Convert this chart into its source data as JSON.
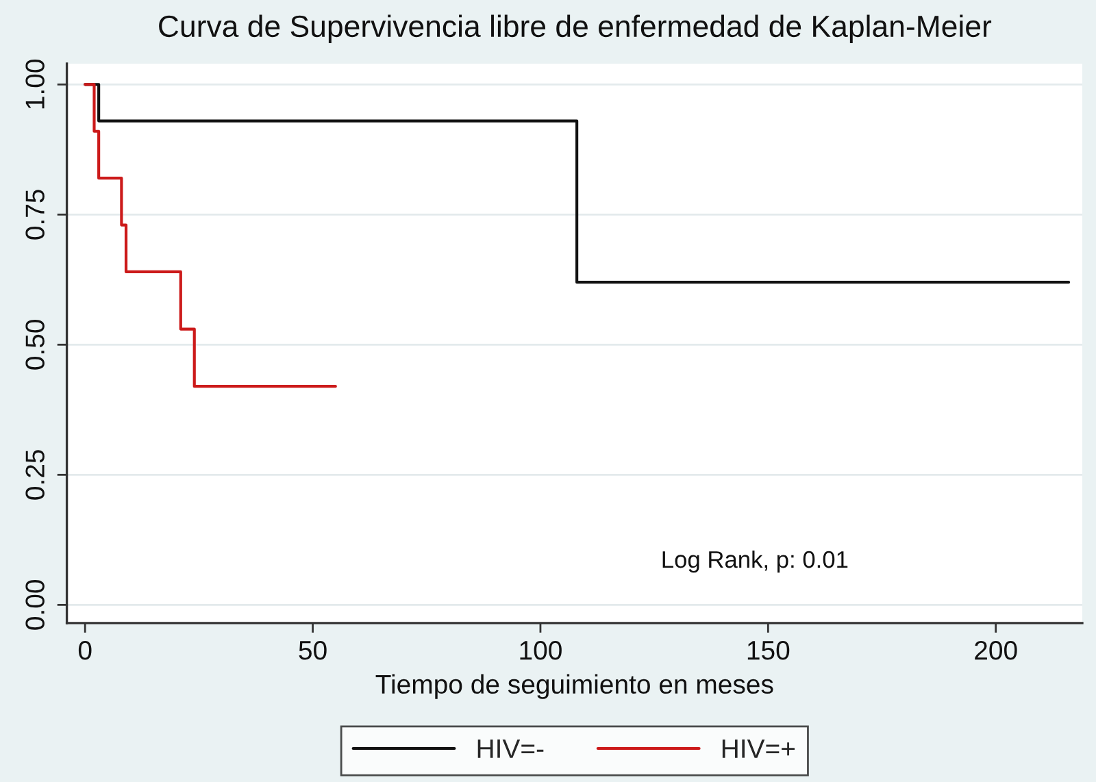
{
  "chart_data": {
    "type": "step",
    "title": "Curva de Supervivencia libre de enfermedad de Kaplan-Meier",
    "xlabel": "Tiempo de seguimiento en meses",
    "series": [
      {
        "name": "HIV=-",
        "color": "#111111",
        "x": [
          0,
          3,
          108,
          216
        ],
        "values": [
          1.0,
          0.93,
          0.62,
          0.62
        ]
      },
      {
        "name": "HIV=+",
        "color": "#cc1a1a",
        "x": [
          0,
          2,
          3,
          8,
          9,
          21,
          24,
          55
        ],
        "values": [
          1.0,
          0.91,
          0.82,
          0.73,
          0.64,
          0.53,
          0.42,
          0.42
        ]
      }
    ],
    "xlim": [
      -4,
      219
    ],
    "xticks": [
      0,
      50,
      100,
      150,
      200
    ],
    "ylim": [
      -0.035,
      1.04
    ],
    "yticks": [
      {
        "value": 0,
        "label": "0.00"
      },
      {
        "value": 0.25,
        "label": "0.25"
      },
      {
        "value": 0.5,
        "label": "0.50"
      },
      {
        "value": 0.75,
        "label": "0.75"
      },
      {
        "value": 1,
        "label": "1.00"
      }
    ],
    "annotations": [
      "Log Rank, p: 0.01"
    ],
    "grid": "y",
    "legend": "bottom",
    "line_style": "solid",
    "marker": "none"
  }
}
